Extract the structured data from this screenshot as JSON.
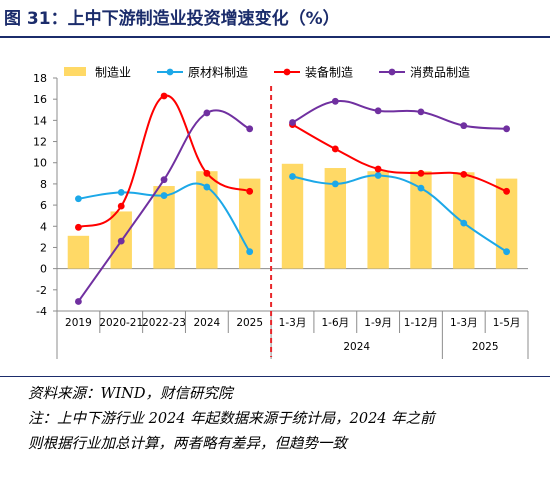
{
  "header": {
    "title": "图 31：上中下游制造业投资增速变化（%）"
  },
  "chart_data": {
    "type": "bar",
    "categories": [
      "2019",
      "2020-21",
      "2022-23",
      "2024",
      "2025",
      "1-3月",
      "1-6月",
      "1-9月",
      "1-12月",
      "1-3月",
      "1-5月"
    ],
    "groups": [
      {
        "label": "2024",
        "from": 5,
        "to": 8
      },
      {
        "label": "2025",
        "from": 9,
        "to": 10
      }
    ],
    "ylim": [
      -4,
      18
    ],
    "yticks": [
      -4,
      -2,
      0,
      2,
      4,
      6,
      8,
      10,
      12,
      14,
      16,
      18
    ],
    "series": [
      {
        "name": "制造业",
        "type": "bar",
        "color": "#FFD966",
        "values": [
          3.1,
          5.4,
          7.8,
          9.2,
          8.5,
          9.9,
          9.5,
          9.2,
          9.2,
          9.1,
          8.5
        ]
      },
      {
        "name": "原材料制造",
        "type": "line",
        "color": "#1CA8E8",
        "values": [
          6.6,
          7.2,
          6.9,
          7.7,
          1.6,
          8.7,
          8.0,
          8.8,
          7.6,
          4.3,
          1.6
        ]
      },
      {
        "name": "装备制造",
        "type": "line",
        "color": "#FF0000",
        "values": [
          3.9,
          5.9,
          16.3,
          9.0,
          7.3,
          13.6,
          11.3,
          9.4,
          9.0,
          8.9,
          7.3
        ]
      },
      {
        "name": "消费品制造",
        "type": "line",
        "color": "#7030A0",
        "values": [
          -3.1,
          2.6,
          8.4,
          14.7,
          13.2,
          13.8,
          15.8,
          14.9,
          14.8,
          13.5,
          13.2
        ]
      }
    ],
    "split_after_index": 4,
    "split_color": "#E8262A"
  },
  "notes": {
    "source": "资料来源：WIND，财信研究院",
    "note_line1": "注：上中下游行业 2024 年起数据来源于统计局，2024 年之前",
    "note_line2": "则根据行业加总计算，两者略有差异，但趋势一致"
  }
}
